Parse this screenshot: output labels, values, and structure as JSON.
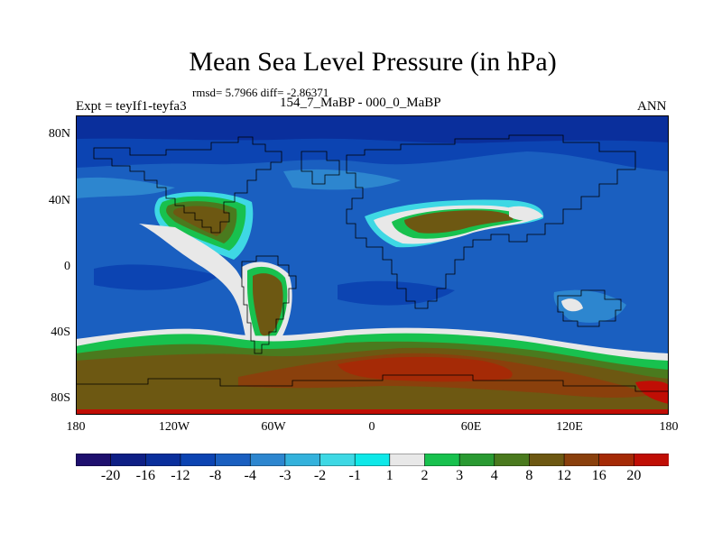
{
  "header": {
    "title": "Mean Sea Level Pressure (in hPa)",
    "stats": "rmsd= 5.7966 diff= -2.86371",
    "experiment": "Expt = teyIf1-teyfa3",
    "comparison": "154_7_MaBP - 000_0_MaBP",
    "season": "ANN"
  },
  "axes": {
    "lat_labels": [
      "80N",
      "40N",
      "0",
      "40S",
      "80S"
    ],
    "lon_labels": [
      "180",
      "120W",
      "60W",
      "0",
      "60E",
      "120E",
      "180"
    ]
  },
  "colorbar": {
    "labels": [
      "-20",
      "-16",
      "-12",
      "-8",
      "-4",
      "-3",
      "-2",
      "-1",
      "1",
      "2",
      "3",
      "4",
      "8",
      "12",
      "16",
      "20"
    ],
    "colors": [
      "#1e0f6e",
      "#0e1f85",
      "#0a2f9c",
      "#0c44b2",
      "#1a5fc0",
      "#2d86cf",
      "#34b2dc",
      "#3ed8e4",
      "#0ee8e8",
      "#e8e8e8",
      "#18c14e",
      "#2a9a32",
      "#4a7a1e",
      "#6d5812",
      "#8a400c",
      "#a52a06",
      "#c00e05"
    ]
  },
  "map": {
    "projection": "cylindrical equidistant",
    "ocean_color": "#1a5fc0",
    "land_high_color": "#6d5812",
    "southern_high_color": "#a52a06",
    "arctic_low_color": "#0a2f9c"
  }
}
